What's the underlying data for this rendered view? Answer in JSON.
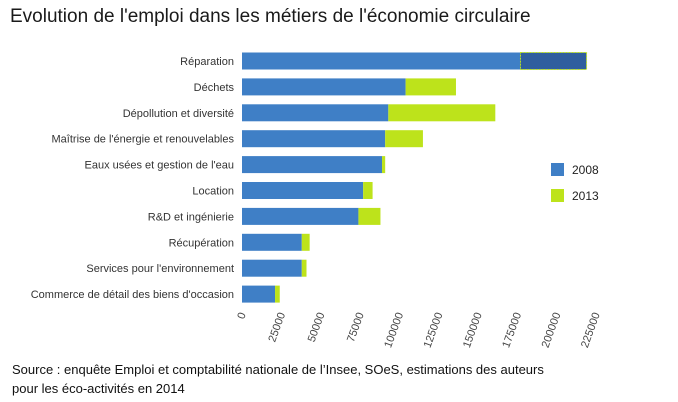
{
  "title": "Evolution de l'emploi dans les métiers de l'économie circulaire",
  "source": "Source : enquête Emploi et comptabilité nationale de l’Insee, SOeS, estimations des auteurs pour les éco-activités en 2014",
  "colors": {
    "s2008": "#3f7fc6",
    "s2013": "#bde31b",
    "highlight": "#2f5e9e"
  },
  "chart_data": {
    "type": "bar",
    "orientation": "horizontal",
    "stacked": true,
    "categories": [
      "Réparation",
      "Déchets",
      "Dépollution et diversité",
      "Maîtrise de l'énergie et renouvelables",
      "Eaux usées et gestion de l'eau",
      "Location",
      "R&D et ingénierie",
      "Récupération",
      "Services pour l'environnement",
      "Commerce de détail des biens d'occasion"
    ],
    "series": [
      {
        "name": "2008",
        "values": [
          177000,
          104000,
          93000,
          91000,
          89000,
          77000,
          74000,
          38000,
          38000,
          21000
        ]
      },
      {
        "name": "2013",
        "values": [
          42000,
          32000,
          68000,
          24000,
          2000,
          6000,
          14000,
          5000,
          3000,
          3000
        ]
      }
    ],
    "xlim": [
      0,
      225000
    ],
    "xticks": [
      "0",
      "25000",
      "50000",
      "75000",
      "100000",
      "125000",
      "150000",
      "175000",
      "200000",
      "225000"
    ],
    "xlabel": "",
    "ylabel": "",
    "legend": "right",
    "grid": false
  }
}
